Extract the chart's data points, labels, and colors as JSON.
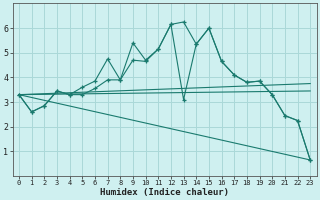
{
  "background_color": "#cff0f0",
  "grid_color": "#aad8d8",
  "line_color": "#1a7a6e",
  "xlabel": "Humidex (Indice chaleur)",
  "xlim": [
    -0.5,
    23.5
  ],
  "ylim": [
    0,
    7
  ],
  "xticks": [
    0,
    1,
    2,
    3,
    4,
    5,
    6,
    7,
    8,
    9,
    10,
    11,
    12,
    13,
    14,
    15,
    16,
    17,
    18,
    19,
    20,
    21,
    22,
    23
  ],
  "yticks": [
    1,
    2,
    3,
    4,
    5,
    6
  ],
  "series1_x": [
    0,
    1,
    2,
    3,
    4,
    5,
    6,
    7,
    8,
    9,
    10,
    11,
    12,
    13,
    14,
    15,
    16,
    17,
    18,
    19,
    20,
    21,
    22,
    23
  ],
  "series1_y": [
    3.3,
    2.6,
    2.85,
    3.45,
    3.3,
    3.6,
    3.85,
    4.75,
    3.9,
    5.4,
    4.7,
    5.15,
    6.15,
    6.25,
    5.35,
    6.0,
    4.65,
    4.1,
    3.8,
    3.85,
    3.3,
    2.45,
    2.25,
    0.65
  ],
  "series2_x": [
    0,
    1,
    2,
    3,
    4,
    5,
    6,
    7,
    8,
    9,
    10,
    11,
    12,
    13,
    14,
    15,
    16,
    17,
    18,
    19,
    20,
    21,
    22,
    23
  ],
  "series2_y": [
    3.3,
    2.6,
    2.85,
    3.45,
    3.3,
    3.3,
    3.55,
    3.9,
    3.9,
    4.7,
    4.65,
    5.15,
    6.15,
    3.1,
    5.35,
    6.0,
    4.65,
    4.1,
    3.8,
    3.85,
    3.3,
    2.45,
    2.25,
    0.65
  ],
  "trend1_x": [
    0,
    23
  ],
  "trend1_y": [
    3.3,
    3.75
  ],
  "trend2_x": [
    0,
    23
  ],
  "trend2_y": [
    3.3,
    3.45
  ],
  "trend3_x": [
    0,
    23
  ],
  "trend3_y": [
    3.3,
    0.65
  ]
}
